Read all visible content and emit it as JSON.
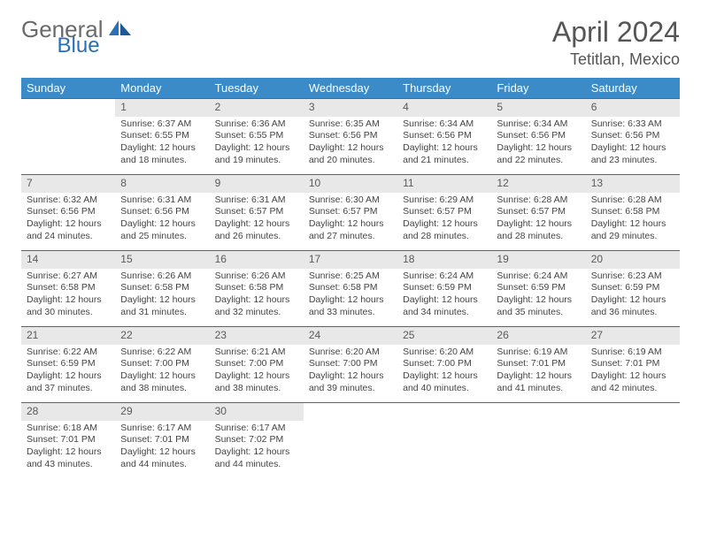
{
  "logo": {
    "text1": "General",
    "text2": "Blue"
  },
  "title": "April 2024",
  "location": "Tetitlan, Mexico",
  "colors": {
    "header_bg": "#3b8bc9",
    "header_text": "#ffffff",
    "daynum_bg": "#e8e8e8",
    "border": "#2a6fb5",
    "logo_gray": "#6a6a6a",
    "logo_blue": "#2a6fb5"
  },
  "dayLabels": [
    "Sunday",
    "Monday",
    "Tuesday",
    "Wednesday",
    "Thursday",
    "Friday",
    "Saturday"
  ],
  "weeks": [
    [
      {
        "n": "",
        "sr": "",
        "ss": "",
        "dl": ""
      },
      {
        "n": "1",
        "sr": "Sunrise: 6:37 AM",
        "ss": "Sunset: 6:55 PM",
        "dl": "Daylight: 12 hours and 18 minutes."
      },
      {
        "n": "2",
        "sr": "Sunrise: 6:36 AM",
        "ss": "Sunset: 6:55 PM",
        "dl": "Daylight: 12 hours and 19 minutes."
      },
      {
        "n": "3",
        "sr": "Sunrise: 6:35 AM",
        "ss": "Sunset: 6:56 PM",
        "dl": "Daylight: 12 hours and 20 minutes."
      },
      {
        "n": "4",
        "sr": "Sunrise: 6:34 AM",
        "ss": "Sunset: 6:56 PM",
        "dl": "Daylight: 12 hours and 21 minutes."
      },
      {
        "n": "5",
        "sr": "Sunrise: 6:34 AM",
        "ss": "Sunset: 6:56 PM",
        "dl": "Daylight: 12 hours and 22 minutes."
      },
      {
        "n": "6",
        "sr": "Sunrise: 6:33 AM",
        "ss": "Sunset: 6:56 PM",
        "dl": "Daylight: 12 hours and 23 minutes."
      }
    ],
    [
      {
        "n": "7",
        "sr": "Sunrise: 6:32 AM",
        "ss": "Sunset: 6:56 PM",
        "dl": "Daylight: 12 hours and 24 minutes."
      },
      {
        "n": "8",
        "sr": "Sunrise: 6:31 AM",
        "ss": "Sunset: 6:56 PM",
        "dl": "Daylight: 12 hours and 25 minutes."
      },
      {
        "n": "9",
        "sr": "Sunrise: 6:31 AM",
        "ss": "Sunset: 6:57 PM",
        "dl": "Daylight: 12 hours and 26 minutes."
      },
      {
        "n": "10",
        "sr": "Sunrise: 6:30 AM",
        "ss": "Sunset: 6:57 PM",
        "dl": "Daylight: 12 hours and 27 minutes."
      },
      {
        "n": "11",
        "sr": "Sunrise: 6:29 AM",
        "ss": "Sunset: 6:57 PM",
        "dl": "Daylight: 12 hours and 28 minutes."
      },
      {
        "n": "12",
        "sr": "Sunrise: 6:28 AM",
        "ss": "Sunset: 6:57 PM",
        "dl": "Daylight: 12 hours and 28 minutes."
      },
      {
        "n": "13",
        "sr": "Sunrise: 6:28 AM",
        "ss": "Sunset: 6:58 PM",
        "dl": "Daylight: 12 hours and 29 minutes."
      }
    ],
    [
      {
        "n": "14",
        "sr": "Sunrise: 6:27 AM",
        "ss": "Sunset: 6:58 PM",
        "dl": "Daylight: 12 hours and 30 minutes."
      },
      {
        "n": "15",
        "sr": "Sunrise: 6:26 AM",
        "ss": "Sunset: 6:58 PM",
        "dl": "Daylight: 12 hours and 31 minutes."
      },
      {
        "n": "16",
        "sr": "Sunrise: 6:26 AM",
        "ss": "Sunset: 6:58 PM",
        "dl": "Daylight: 12 hours and 32 minutes."
      },
      {
        "n": "17",
        "sr": "Sunrise: 6:25 AM",
        "ss": "Sunset: 6:58 PM",
        "dl": "Daylight: 12 hours and 33 minutes."
      },
      {
        "n": "18",
        "sr": "Sunrise: 6:24 AM",
        "ss": "Sunset: 6:59 PM",
        "dl": "Daylight: 12 hours and 34 minutes."
      },
      {
        "n": "19",
        "sr": "Sunrise: 6:24 AM",
        "ss": "Sunset: 6:59 PM",
        "dl": "Daylight: 12 hours and 35 minutes."
      },
      {
        "n": "20",
        "sr": "Sunrise: 6:23 AM",
        "ss": "Sunset: 6:59 PM",
        "dl": "Daylight: 12 hours and 36 minutes."
      }
    ],
    [
      {
        "n": "21",
        "sr": "Sunrise: 6:22 AM",
        "ss": "Sunset: 6:59 PM",
        "dl": "Daylight: 12 hours and 37 minutes."
      },
      {
        "n": "22",
        "sr": "Sunrise: 6:22 AM",
        "ss": "Sunset: 7:00 PM",
        "dl": "Daylight: 12 hours and 38 minutes."
      },
      {
        "n": "23",
        "sr": "Sunrise: 6:21 AM",
        "ss": "Sunset: 7:00 PM",
        "dl": "Daylight: 12 hours and 38 minutes."
      },
      {
        "n": "24",
        "sr": "Sunrise: 6:20 AM",
        "ss": "Sunset: 7:00 PM",
        "dl": "Daylight: 12 hours and 39 minutes."
      },
      {
        "n": "25",
        "sr": "Sunrise: 6:20 AM",
        "ss": "Sunset: 7:00 PM",
        "dl": "Daylight: 12 hours and 40 minutes."
      },
      {
        "n": "26",
        "sr": "Sunrise: 6:19 AM",
        "ss": "Sunset: 7:01 PM",
        "dl": "Daylight: 12 hours and 41 minutes."
      },
      {
        "n": "27",
        "sr": "Sunrise: 6:19 AM",
        "ss": "Sunset: 7:01 PM",
        "dl": "Daylight: 12 hours and 42 minutes."
      }
    ],
    [
      {
        "n": "28",
        "sr": "Sunrise: 6:18 AM",
        "ss": "Sunset: 7:01 PM",
        "dl": "Daylight: 12 hours and 43 minutes."
      },
      {
        "n": "29",
        "sr": "Sunrise: 6:17 AM",
        "ss": "Sunset: 7:01 PM",
        "dl": "Daylight: 12 hours and 44 minutes."
      },
      {
        "n": "30",
        "sr": "Sunrise: 6:17 AM",
        "ss": "Sunset: 7:02 PM",
        "dl": "Daylight: 12 hours and 44 minutes."
      },
      {
        "n": "",
        "sr": "",
        "ss": "",
        "dl": ""
      },
      {
        "n": "",
        "sr": "",
        "ss": "",
        "dl": ""
      },
      {
        "n": "",
        "sr": "",
        "ss": "",
        "dl": ""
      },
      {
        "n": "",
        "sr": "",
        "ss": "",
        "dl": ""
      }
    ]
  ]
}
